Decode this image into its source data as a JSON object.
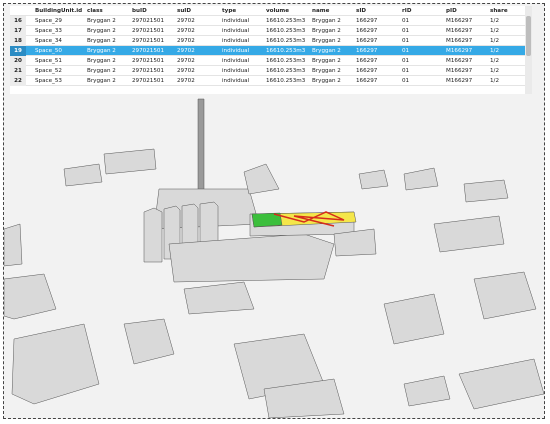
{
  "table": {
    "columns": [
      "BuildingUnit.id",
      "class",
      "buID",
      "suID",
      "type",
      "volume",
      "name",
      "sID",
      "rID",
      "pID",
      "share"
    ],
    "rows": [
      {
        "number": "16",
        "cells": [
          "Space_29",
          "Bryggan 2",
          "297021501",
          "29702",
          "individual",
          "16610.253m3",
          "Bryggan 2",
          "166297",
          "01",
          "M166297",
          "1/2"
        ]
      },
      {
        "number": "17",
        "cells": [
          "Space_33",
          "Bryggan 2",
          "297021501",
          "29702",
          "individual",
          "16610.253m3",
          "Bryggan 2",
          "166297",
          "01",
          "M166297",
          "1/2"
        ]
      },
      {
        "number": "18",
        "cells": [
          "Space_34",
          "Bryggan 2",
          "297021501",
          "29702",
          "individual",
          "16610.253m3",
          "Bryggan 2",
          "166297",
          "01",
          "M166297",
          "1/2"
        ]
      },
      {
        "number": "19",
        "cells": [
          "Space_50",
          "Bryggan 2",
          "297021501",
          "29702",
          "individual",
          "16610.253m3",
          "Bryggan 2",
          "166297",
          "01",
          "M166297",
          "1/2"
        ]
      },
      {
        "number": "20",
        "cells": [
          "Space_51",
          "Bryggan 2",
          "297021501",
          "29702",
          "individual",
          "16610.253m3",
          "Bryggan 2",
          "166297",
          "01",
          "M166297",
          "1/2"
        ]
      },
      {
        "number": "21",
        "cells": [
          "Space_52",
          "Bryggan 2",
          "297021501",
          "29702",
          "individual",
          "16610.253m3",
          "Bryggan 2",
          "166297",
          "01",
          "M166297",
          "1/2"
        ]
      },
      {
        "number": "22",
        "cells": [
          "Space_53",
          "Bryggan 2",
          "297021501",
          "29702",
          "individual",
          "16610.253m3",
          "Bryggan 2",
          "166297",
          "01",
          "M166297",
          "1/2"
        ]
      }
    ],
    "selected_row": 3
  }
}
